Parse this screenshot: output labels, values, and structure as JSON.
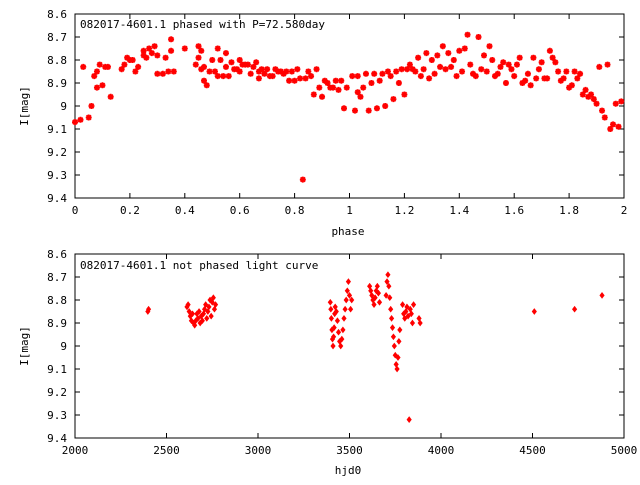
{
  "chart_data": [
    {
      "type": "scatter",
      "title": "082017-4601.1 phased with P=72.580day",
      "xlabel": "phase",
      "ylabel": "I[mag]",
      "xlim": [
        0,
        2
      ],
      "ylim": [
        8.6,
        9.4
      ],
      "y_inverted": true,
      "xticks": [
        "0",
        "0.2",
        "0.4",
        "0.6",
        "0.8",
        "1",
        "1.2",
        "1.4",
        "1.6",
        "1.8",
        "2"
      ],
      "yticks": [
        "8.6",
        "8.7",
        "8.8",
        "8.9",
        "9",
        "9.1",
        "9.2",
        "9.3",
        "9.4"
      ],
      "marker": "star",
      "color": "#ff0000",
      "grid": false,
      "points": [
        [
          0.0,
          9.07
        ],
        [
          0.02,
          9.06
        ],
        [
          0.03,
          8.83
        ],
        [
          0.05,
          9.05
        ],
        [
          0.06,
          9.0
        ],
        [
          0.07,
          8.87
        ],
        [
          0.08,
          8.85
        ],
        [
          0.08,
          8.92
        ],
        [
          0.09,
          8.82
        ],
        [
          0.1,
          8.91
        ],
        [
          0.11,
          8.83
        ],
        [
          0.12,
          8.83
        ],
        [
          0.13,
          8.96
        ],
        [
          0.17,
          8.84
        ],
        [
          0.18,
          8.82
        ],
        [
          0.19,
          8.79
        ],
        [
          0.2,
          8.8
        ],
        [
          0.21,
          8.8
        ],
        [
          0.22,
          8.85
        ],
        [
          0.23,
          8.83
        ],
        [
          0.25,
          8.78
        ],
        [
          0.25,
          8.76
        ],
        [
          0.26,
          8.79
        ],
        [
          0.27,
          8.75
        ],
        [
          0.28,
          8.77
        ],
        [
          0.29,
          8.74
        ],
        [
          0.3,
          8.78
        ],
        [
          0.3,
          8.86
        ],
        [
          0.32,
          8.86
        ],
        [
          0.33,
          8.79
        ],
        [
          0.34,
          8.85
        ],
        [
          0.35,
          8.71
        ],
        [
          0.35,
          8.76
        ],
        [
          0.36,
          8.85
        ],
        [
          0.4,
          8.75
        ],
        [
          0.44,
          8.82
        ],
        [
          0.45,
          8.79
        ],
        [
          0.45,
          8.74
        ],
        [
          0.46,
          8.76
        ],
        [
          0.46,
          8.84
        ],
        [
          0.47,
          8.89
        ],
        [
          0.47,
          8.83
        ],
        [
          0.48,
          8.91
        ],
        [
          0.49,
          8.85
        ],
        [
          0.5,
          8.8
        ],
        [
          0.51,
          8.85
        ],
        [
          0.52,
          8.87
        ],
        [
          0.52,
          8.75
        ],
        [
          0.53,
          8.8
        ],
        [
          0.54,
          8.87
        ],
        [
          0.55,
          8.83
        ],
        [
          0.55,
          8.77
        ],
        [
          0.56,
          8.87
        ],
        [
          0.57,
          8.81
        ],
        [
          0.58,
          8.84
        ],
        [
          0.59,
          8.84
        ],
        [
          0.6,
          8.8
        ],
        [
          0.6,
          8.85
        ],
        [
          0.61,
          8.82
        ],
        [
          0.62,
          8.82
        ],
        [
          0.63,
          8.82
        ],
        [
          0.64,
          8.86
        ],
        [
          0.65,
          8.83
        ],
        [
          0.66,
          8.81
        ],
        [
          0.67,
          8.85
        ],
        [
          0.67,
          8.88
        ],
        [
          0.68,
          8.84
        ],
        [
          0.69,
          8.86
        ],
        [
          0.7,
          8.84
        ],
        [
          0.71,
          8.87
        ],
        [
          0.72,
          8.87
        ],
        [
          0.73,
          8.84
        ],
        [
          0.74,
          8.85
        ],
        [
          0.75,
          8.85
        ],
        [
          0.76,
          8.86
        ],
        [
          0.77,
          8.85
        ],
        [
          0.78,
          8.89
        ],
        [
          0.79,
          8.85
        ],
        [
          0.8,
          8.89
        ],
        [
          0.81,
          8.84
        ],
        [
          0.82,
          8.88
        ],
        [
          0.83,
          9.32
        ],
        [
          0.84,
          8.88
        ],
        [
          0.85,
          8.85
        ],
        [
          0.86,
          8.87
        ],
        [
          0.87,
          8.95
        ],
        [
          0.88,
          8.84
        ],
        [
          0.89,
          8.92
        ],
        [
          0.9,
          8.96
        ],
        [
          0.91,
          8.89
        ],
        [
          0.92,
          8.9
        ],
        [
          0.93,
          8.92
        ],
        [
          0.94,
          8.92
        ],
        [
          0.95,
          8.89
        ],
        [
          0.96,
          8.93
        ],
        [
          0.97,
          8.89
        ],
        [
          0.98,
          9.01
        ],
        [
          0.99,
          8.92
        ],
        [
          1.01,
          8.87
        ],
        [
          1.02,
          9.02
        ],
        [
          1.03,
          8.94
        ],
        [
          1.03,
          8.87
        ],
        [
          1.04,
          8.96
        ],
        [
          1.05,
          8.92
        ],
        [
          1.06,
          8.86
        ],
        [
          1.07,
          9.02
        ],
        [
          1.08,
          8.9
        ],
        [
          1.09,
          8.86
        ],
        [
          1.1,
          9.01
        ],
        [
          1.11,
          8.89
        ],
        [
          1.12,
          8.86
        ],
        [
          1.13,
          9.0
        ],
        [
          1.14,
          8.85
        ],
        [
          1.15,
          8.87
        ],
        [
          1.16,
          8.97
        ],
        [
          1.17,
          8.85
        ],
        [
          1.18,
          8.9
        ],
        [
          1.19,
          8.84
        ],
        [
          1.2,
          8.95
        ],
        [
          1.21,
          8.84
        ],
        [
          1.22,
          8.82
        ],
        [
          1.23,
          8.84
        ],
        [
          1.24,
          8.85
        ],
        [
          1.25,
          8.79
        ],
        [
          1.26,
          8.87
        ],
        [
          1.27,
          8.84
        ],
        [
          1.28,
          8.77
        ],
        [
          1.29,
          8.88
        ],
        [
          1.3,
          8.8
        ],
        [
          1.31,
          8.86
        ],
        [
          1.32,
          8.78
        ],
        [
          1.33,
          8.83
        ],
        [
          1.34,
          8.74
        ],
        [
          1.35,
          8.84
        ],
        [
          1.36,
          8.77
        ],
        [
          1.37,
          8.83
        ],
        [
          1.38,
          8.8
        ],
        [
          1.39,
          8.87
        ],
        [
          1.4,
          8.76
        ],
        [
          1.41,
          8.85
        ],
        [
          1.42,
          8.75
        ],
        [
          1.43,
          8.69
        ],
        [
          1.44,
          8.82
        ],
        [
          1.45,
          8.86
        ],
        [
          1.46,
          8.87
        ],
        [
          1.47,
          8.7
        ],
        [
          1.48,
          8.84
        ],
        [
          1.49,
          8.78
        ],
        [
          1.5,
          8.85
        ],
        [
          1.51,
          8.74
        ],
        [
          1.52,
          8.8
        ],
        [
          1.53,
          8.87
        ],
        [
          1.54,
          8.86
        ],
        [
          1.55,
          8.83
        ],
        [
          1.56,
          8.81
        ],
        [
          1.57,
          8.9
        ],
        [
          1.58,
          8.82
        ],
        [
          1.59,
          8.84
        ],
        [
          1.6,
          8.87
        ],
        [
          1.61,
          8.82
        ],
        [
          1.62,
          8.79
        ],
        [
          1.63,
          8.9
        ],
        [
          1.64,
          8.89
        ],
        [
          1.65,
          8.86
        ],
        [
          1.66,
          8.91
        ],
        [
          1.67,
          8.79
        ],
        [
          1.68,
          8.88
        ],
        [
          1.69,
          8.84
        ],
        [
          1.7,
          8.81
        ],
        [
          1.71,
          8.88
        ],
        [
          1.72,
          8.88
        ],
        [
          1.73,
          8.76
        ],
        [
          1.74,
          8.79
        ],
        [
          1.75,
          8.81
        ],
        [
          1.76,
          8.85
        ],
        [
          1.77,
          8.89
        ],
        [
          1.78,
          8.88
        ],
        [
          1.79,
          8.85
        ],
        [
          1.8,
          8.92
        ],
        [
          1.81,
          8.91
        ],
        [
          1.82,
          8.85
        ],
        [
          1.83,
          8.88
        ],
        [
          1.84,
          8.86
        ],
        [
          1.85,
          8.95
        ],
        [
          1.86,
          8.93
        ],
        [
          1.87,
          8.96
        ],
        [
          1.88,
          8.95
        ],
        [
          1.89,
          8.97
        ],
        [
          1.9,
          8.99
        ],
        [
          1.91,
          8.83
        ],
        [
          1.92,
          9.02
        ],
        [
          1.93,
          9.05
        ],
        [
          1.94,
          8.82
        ],
        [
          1.95,
          9.1
        ],
        [
          1.96,
          9.08
        ],
        [
          1.97,
          8.99
        ],
        [
          1.98,
          9.09
        ],
        [
          1.99,
          8.98
        ]
      ]
    },
    {
      "type": "scatter",
      "title": "082017-4601.1 not phased light curve",
      "xlabel": "hjd0",
      "ylabel": "I[mag]",
      "xlim": [
        2000,
        5000
      ],
      "ylim": [
        8.6,
        9.4
      ],
      "y_inverted": true,
      "xticks": [
        "2000",
        "2500",
        "3000",
        "3500",
        "4000",
        "4500",
        "5000"
      ],
      "yticks": [
        "8.6",
        "8.7",
        "8.8",
        "8.9",
        "9",
        "9.1",
        "9.2",
        "9.3",
        "9.4"
      ],
      "marker": "diamond",
      "color": "#ff0000",
      "grid": false,
      "points": [
        [
          2398,
          8.85
        ],
        [
          2402,
          8.84
        ],
        [
          2612,
          8.83
        ],
        [
          2618,
          8.82
        ],
        [
          2624,
          8.85
        ],
        [
          2630,
          8.87
        ],
        [
          2636,
          8.89
        ],
        [
          2642,
          8.86
        ],
        [
          2648,
          8.9
        ],
        [
          2654,
          8.91
        ],
        [
          2660,
          8.89
        ],
        [
          2666,
          8.86
        ],
        [
          2672,
          8.88
        ],
        [
          2678,
          8.85
        ],
        [
          2684,
          8.9
        ],
        [
          2690,
          8.87
        ],
        [
          2696,
          8.89
        ],
        [
          2702,
          8.86
        ],
        [
          2708,
          8.84
        ],
        [
          2714,
          8.82
        ],
        [
          2720,
          8.88
        ],
        [
          2726,
          8.85
        ],
        [
          2732,
          8.83
        ],
        [
          2738,
          8.8
        ],
        [
          2744,
          8.87
        ],
        [
          2750,
          8.81
        ],
        [
          2756,
          8.79
        ],
        [
          2762,
          8.84
        ],
        [
          2768,
          8.82
        ],
        [
          3395,
          8.81
        ],
        [
          3398,
          8.84
        ],
        [
          3401,
          8.88
        ],
        [
          3404,
          8.93
        ],
        [
          3407,
          8.97
        ],
        [
          3410,
          9.0
        ],
        [
          3413,
          8.96
        ],
        [
          3416,
          8.92
        ],
        [
          3419,
          8.86
        ],
        [
          3422,
          8.83
        ],
        [
          3428,
          8.85
        ],
        [
          3434,
          8.89
        ],
        [
          3440,
          8.94
        ],
        [
          3446,
          8.98
        ],
        [
          3452,
          9.0
        ],
        [
          3458,
          8.97
        ],
        [
          3464,
          8.93
        ],
        [
          3470,
          8.88
        ],
        [
          3476,
          8.84
        ],
        [
          3482,
          8.8
        ],
        [
          3488,
          8.76
        ],
        [
          3494,
          8.72
        ],
        [
          3500,
          8.78
        ],
        [
          3506,
          8.84
        ],
        [
          3512,
          8.8
        ],
        [
          3610,
          8.74
        ],
        [
          3616,
          8.76
        ],
        [
          3622,
          8.78
        ],
        [
          3628,
          8.8
        ],
        [
          3634,
          8.82
        ],
        [
          3640,
          8.79
        ],
        [
          3646,
          8.76
        ],
        [
          3652,
          8.74
        ],
        [
          3658,
          8.77
        ],
        [
          3664,
          8.81
        ],
        [
          3700,
          8.78
        ],
        [
          3705,
          8.72
        ],
        [
          3710,
          8.69
        ],
        [
          3715,
          8.74
        ],
        [
          3720,
          8.79
        ],
        [
          3725,
          8.84
        ],
        [
          3730,
          8.88
        ],
        [
          3735,
          8.92
        ],
        [
          3740,
          8.96
        ],
        [
          3745,
          9.0
        ],
        [
          3750,
          9.04
        ],
        [
          3755,
          9.08
        ],
        [
          3760,
          9.1
        ],
        [
          3765,
          9.05
        ],
        [
          3770,
          8.98
        ],
        [
          3775,
          8.93
        ],
        [
          3790,
          8.82
        ],
        [
          3796,
          8.86
        ],
        [
          3802,
          8.88
        ],
        [
          3808,
          8.85
        ],
        [
          3814,
          8.83
        ],
        [
          3820,
          8.87
        ],
        [
          3826,
          9.32
        ],
        [
          3832,
          8.84
        ],
        [
          3838,
          8.86
        ],
        [
          3844,
          8.9
        ],
        [
          3850,
          8.82
        ],
        [
          3880,
          8.88
        ],
        [
          3886,
          8.9
        ],
        [
          4510,
          8.85
        ],
        [
          4730,
          8.84
        ],
        [
          4880,
          8.78
        ]
      ]
    }
  ]
}
